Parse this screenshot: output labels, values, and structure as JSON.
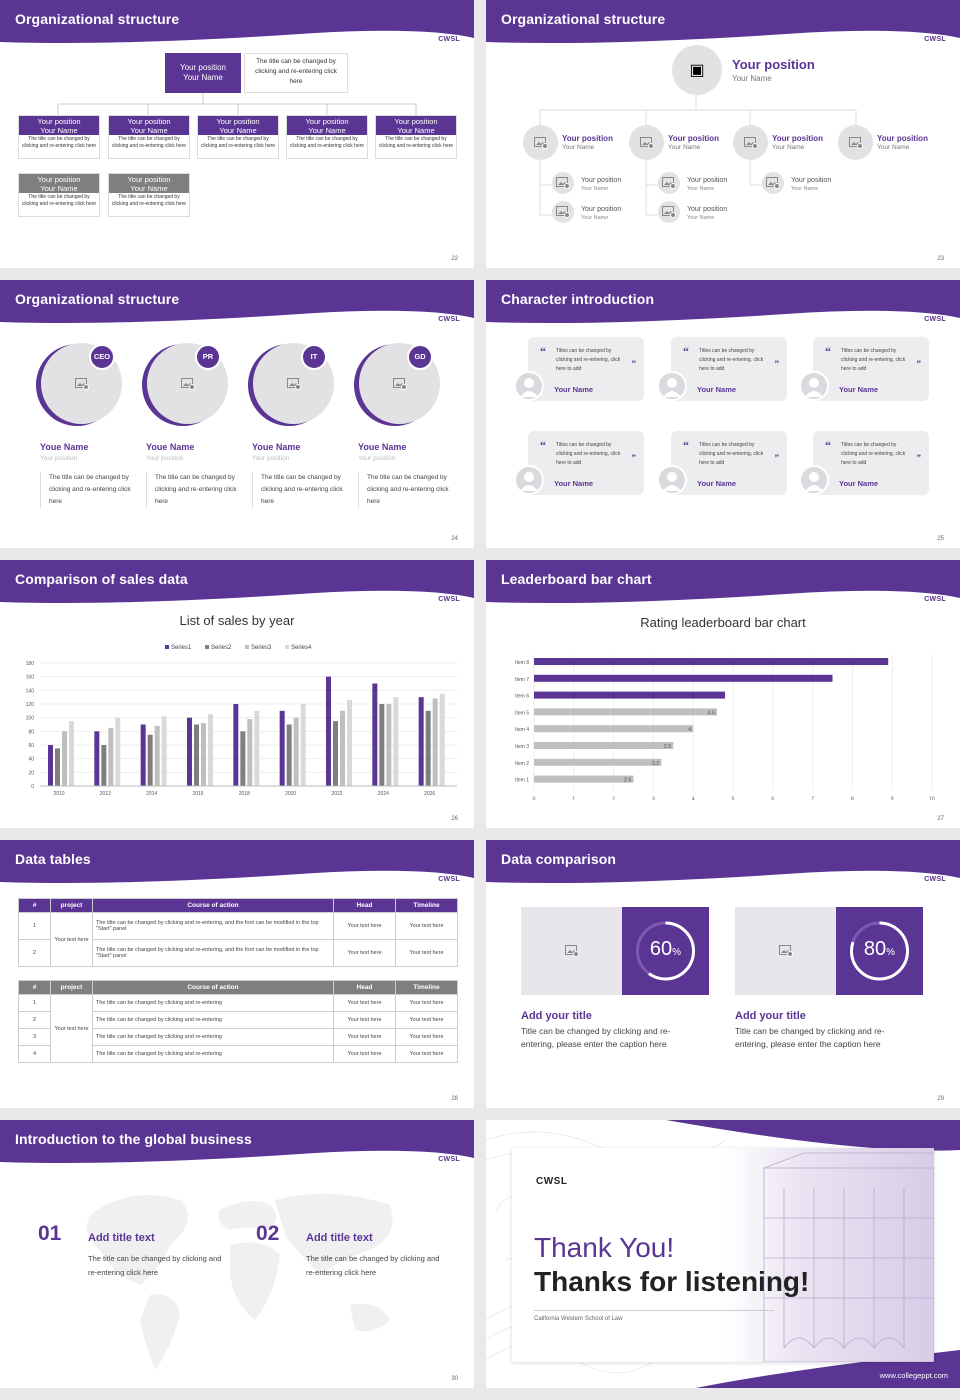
{
  "logo": "CWSL",
  "s22": {
    "title": "Organizational structure",
    "num": "22",
    "top": {
      "pos": "Your position",
      "name": "Your Name",
      "note": "The title can be changed by clicking and re-entering click here"
    },
    "box_pos": "Your position",
    "box_name": "Your Name",
    "box_text": "The title can be changed by clicking and re-entering click here"
  },
  "s23": {
    "title": "Organizational structure",
    "num": "23",
    "pos": "Your position",
    "name": "Your Name"
  },
  "s24": {
    "title": "Organizational structure",
    "num": "24",
    "people": [
      {
        "badge": "CEO"
      },
      {
        "badge": "PR"
      },
      {
        "badge": "IT"
      },
      {
        "badge": "GD"
      }
    ],
    "name": "Youe Name",
    "pos": "Your position",
    "text": "The title can be changed by clicking and re-entering click here"
  },
  "s25": {
    "title": "Character introduction",
    "num": "25",
    "text": "Titles can be changed by clicking and re-entering, click here to add",
    "name": "Your Name"
  },
  "s26": {
    "title": "Comparison of sales data",
    "num": "26"
  },
  "s27": {
    "title": "Leaderboard bar chart",
    "num": "27"
  },
  "s28": {
    "title": "Data tables",
    "num": "28",
    "headers": [
      "#",
      "project",
      "Course of action",
      "Head",
      "Timeline"
    ],
    "t1": {
      "project": "Your text here",
      "rows": [
        {
          "n": "1",
          "action": "The title can be changed by clicking and re-entering, and the font can be modified in the top \"Start\" panel",
          "head": "Your text here",
          "time": "Your text here"
        },
        {
          "n": "2",
          "action": "The title can be changed by clicking and re-entering, and the font can be modified in the top \"Start\" panel",
          "head": "Your text here",
          "time": "Your text here"
        }
      ]
    },
    "t2": {
      "project": "Your text here",
      "rows": [
        {
          "n": "1",
          "action": "The title can be changed by clicking and re-entering",
          "head": "Your text here",
          "time": "Your text here"
        },
        {
          "n": "2",
          "action": "The title can be changed by clicking and re-entering",
          "head": "Your text here",
          "time": "Your text here"
        },
        {
          "n": "3",
          "action": "The title can be changed by clicking and re-entering",
          "head": "Your text here",
          "time": "Your text here"
        },
        {
          "n": "4",
          "action": "The title can be changed by clicking and re-entering",
          "head": "Your text here",
          "time": "Your text here"
        }
      ]
    }
  },
  "s29": {
    "title": "Data comparison",
    "num": "29",
    "items": [
      {
        "pct": "60",
        "unit": "%",
        "value": 60,
        "title": "Add your title",
        "text": "Title can be changed by clicking and re-entering, please enter the caption here"
      },
      {
        "pct": "80",
        "unit": "%",
        "value": 80,
        "title": "Add your title",
        "text": "Title can be changed by clicking and re-entering, please enter the caption here"
      }
    ]
  },
  "s30": {
    "title": "Introduction to the global business",
    "num": "30",
    "items": [
      {
        "n": "01",
        "title": "Add title text",
        "text": "The title can be changed by clicking and re-entering click here"
      },
      {
        "n": "02",
        "title": "Add title text",
        "text": "The title can be changed by clicking and re-entering click here"
      }
    ]
  },
  "s31": {
    "logo": "CWSL",
    "thanks": "Thank You!",
    "listening": "Thanks for listening!",
    "school": "California Western School of Law",
    "url": "www.collegeppt.com"
  },
  "colors": {
    "purple": "#5b3594",
    "gray": "#7f7f7f",
    "light": "#bfbfbf"
  },
  "chart_data": [
    {
      "type": "bar",
      "title": "List of sales by year",
      "categories": [
        "2010",
        "2012",
        "2014",
        "2016",
        "2018",
        "2020",
        "2022",
        "2024",
        "2026"
      ],
      "series": [
        {
          "name": "Series1",
          "values": [
            60,
            80,
            90,
            100,
            120,
            110,
            160,
            150,
            130
          ]
        },
        {
          "name": "Series2",
          "values": [
            55,
            60,
            75,
            90,
            80,
            90,
            95,
            120,
            110
          ]
        },
        {
          "name": "Series3",
          "values": [
            80,
            85,
            88,
            92,
            98,
            100,
            110,
            120,
            128
          ]
        },
        {
          "name": "Series4",
          "values": [
            95,
            100,
            102,
            105,
            110,
            120,
            126,
            130,
            135
          ]
        }
      ],
      "ylim": [
        0,
        180
      ],
      "yticks": [
        "0",
        "20",
        "40",
        "60",
        "80",
        "100",
        "120",
        "140",
        "160",
        "180"
      ],
      "legend": "top"
    },
    {
      "type": "bar",
      "orientation": "horizontal",
      "title": "Rating leaderboard bar chart",
      "categories": [
        "Item 1",
        "Item 2",
        "Item 3",
        "Item 4",
        "Item 5",
        "Item 6",
        "Item 7",
        "Item 8"
      ],
      "values": [
        2.5,
        3.2,
        3.5,
        4,
        4.6,
        4.8,
        7.5,
        8.9
      ],
      "labels": [
        "2.5",
        "3.2",
        "3.5",
        "4",
        "4.6",
        "",
        "",
        ""
      ],
      "xlim": [
        0,
        10
      ],
      "xticks": [
        "0",
        "1",
        "2",
        "3",
        "4",
        "5",
        "6",
        "7",
        "8",
        "9",
        "10"
      ]
    }
  ]
}
